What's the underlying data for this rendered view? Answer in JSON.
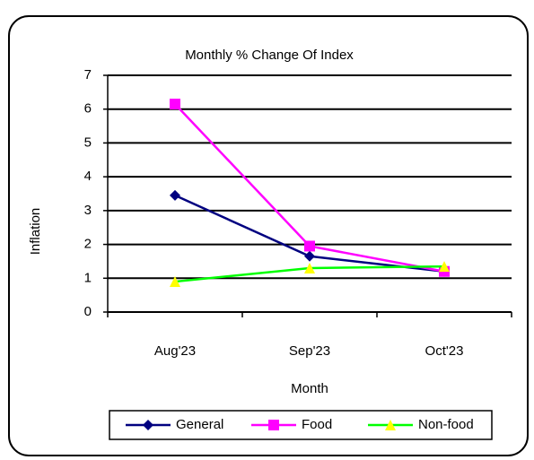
{
  "chart_data": {
    "type": "line",
    "title": "Monthly % Change Of Index",
    "x_label": "Month",
    "y_label": "Inflation",
    "categories": [
      "Aug'23",
      "Sep'23",
      "Oct'23"
    ],
    "series": [
      {
        "name": "General",
        "color": "#000080",
        "marker": "diamond",
        "marker_color": "#000080",
        "values": [
          3.45,
          1.65,
          1.2
        ]
      },
      {
        "name": "Food",
        "color": "#ff00ff",
        "marker": "square",
        "marker_color": "#ff00ff",
        "values": [
          6.15,
          1.95,
          1.2
        ]
      },
      {
        "name": "Non-food",
        "color": "#00ff00",
        "marker": "triangle",
        "marker_color": "#ffff00",
        "values": [
          0.9,
          1.3,
          1.35
        ]
      }
    ],
    "ylim": [
      0,
      7
    ],
    "yticks": [
      0,
      1,
      2,
      3,
      4,
      5,
      6,
      7
    ],
    "grid": true,
    "legend": "bottom"
  }
}
